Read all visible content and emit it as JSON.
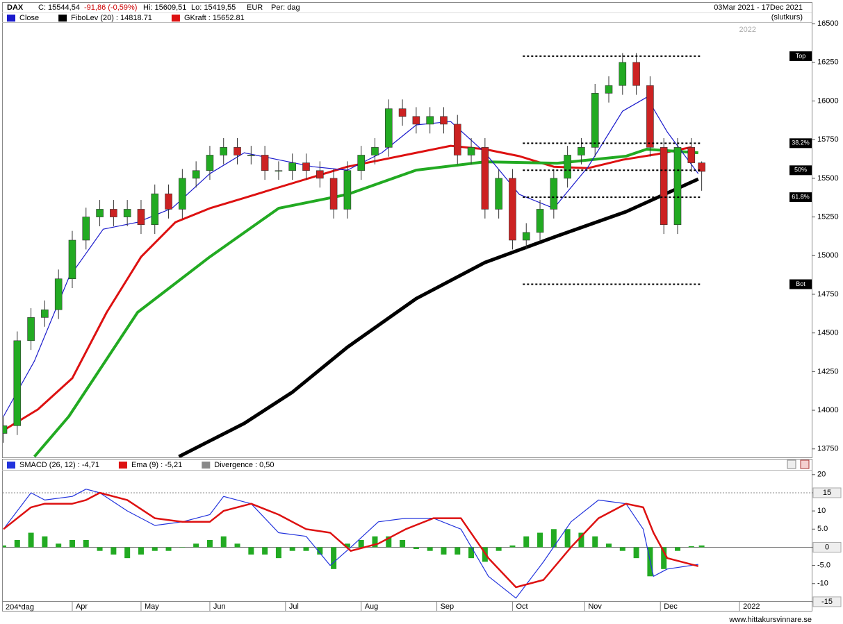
{
  "header": {
    "symbol": "DAX",
    "close": "C: 15544,54",
    "change": "-91,86 (-0,59%)",
    "high": "Hi: 15609,51",
    "low": "Lo: 15419,55",
    "currency": "EUR",
    "period": "Per: dag",
    "range": "03Mar 2021 - 17Dec 2021",
    "price_type": "(slutkurs)"
  },
  "footer": {
    "site": "www.hittakursvinnare.se"
  },
  "chart_data": [
    {
      "type": "candlestick",
      "annotation": "2022",
      "xlim": [
        0,
        235
      ],
      "ylim": [
        13695,
        16505
      ],
      "yticks": [
        13750,
        14000,
        14250,
        14500,
        14750,
        15000,
        15250,
        15500,
        15750,
        16000,
        16250,
        16500
      ],
      "up_color": "#22aa22",
      "down_color": "#cc2222",
      "x": [
        0,
        4,
        8,
        12,
        16,
        20,
        24,
        28,
        32,
        36,
        40,
        44,
        48,
        52,
        56,
        60,
        64,
        68,
        72,
        76,
        80,
        84,
        88,
        92,
        96,
        100,
        104,
        108,
        112,
        116,
        120,
        124,
        128,
        132,
        136,
        140,
        144,
        148,
        152,
        156,
        160,
        164,
        168,
        172,
        176,
        180,
        184,
        188,
        192,
        196,
        200,
        203
      ],
      "open": [
        13850,
        13900,
        14450,
        14600,
        14650,
        14850,
        15100,
        15250,
        15300,
        15250,
        15300,
        15200,
        15400,
        15300,
        15500,
        15550,
        15650,
        15700,
        15650,
        15650,
        15550,
        15550,
        15600,
        15550,
        15500,
        15300,
        15550,
        15650,
        15700,
        15950,
        15900,
        15850,
        15900,
        15850,
        15650,
        15700,
        15300,
        15500,
        15100,
        15150,
        15300,
        15500,
        15650,
        15700,
        16050,
        16100,
        16250,
        16100,
        15700,
        15200,
        15700,
        15600
      ],
      "high": [
        13960,
        14510,
        14660,
        14710,
        14910,
        15160,
        15310,
        15360,
        15360,
        15360,
        15360,
        15460,
        15460,
        15560,
        15610,
        15710,
        15760,
        15760,
        15710,
        15710,
        15610,
        15660,
        15660,
        15610,
        15560,
        15610,
        15710,
        15760,
        16010,
        16010,
        15960,
        15960,
        15960,
        15910,
        15760,
        15760,
        15560,
        15560,
        15210,
        15360,
        15560,
        15710,
        15760,
        16110,
        16160,
        16310,
        16310,
        16160,
        15760,
        15760,
        15760,
        15609.51
      ],
      "low": [
        13790,
        13840,
        14390,
        14540,
        14590,
        14790,
        15040,
        15190,
        15190,
        15190,
        15140,
        15140,
        15240,
        15240,
        15440,
        15490,
        15590,
        15590,
        15590,
        15490,
        15490,
        15490,
        15490,
        15440,
        15240,
        15240,
        15490,
        15590,
        15640,
        15840,
        15790,
        15790,
        15790,
        15590,
        15590,
        15240,
        15240,
        15040,
        15040,
        15090,
        15240,
        15440,
        15590,
        15640,
        15990,
        16040,
        16040,
        15640,
        15140,
        15140,
        15540,
        15419.55
      ],
      "close": [
        13900,
        14450,
        14600,
        14650,
        14850,
        15100,
        15250,
        15300,
        15250,
        15300,
        15200,
        15400,
        15300,
        15500,
        15550,
        15650,
        15700,
        15650,
        15650,
        15550,
        15550,
        15600,
        15550,
        15500,
        15300,
        15550,
        15650,
        15700,
        15950,
        15900,
        15850,
        15900,
        15850,
        15650,
        15700,
        15300,
        15500,
        15100,
        15150,
        15300,
        15500,
        15650,
        15700,
        16050,
        16100,
        16250,
        16100,
        15700,
        15200,
        15700,
        15600,
        15544.54
      ],
      "series": [
        {
          "name": "Close",
          "color": "#1a1acc",
          "width": 1.2,
          "x": [
            0,
            9,
            19,
            29,
            39,
            49,
            60,
            70,
            80,
            90,
            100,
            110,
            120,
            130,
            140,
            150,
            160,
            170,
            180,
            187,
            193,
            202
          ],
          "values": [
            13960,
            14318,
            14857,
            15171,
            15216,
            15306,
            15530,
            15665,
            15620,
            15575,
            15553,
            15665,
            15845,
            15867,
            15665,
            15396,
            15306,
            15575,
            15934,
            16024,
            15800,
            15530
          ]
        },
        {
          "name": "FiboLev (20) : 14818.71",
          "color": "#000000",
          "width": 5,
          "x": [
            51,
            60,
            70,
            84,
            100,
            120,
            140,
            161,
            181,
            202
          ],
          "values": [
            13700,
            13802,
            13915,
            14117,
            14408,
            14722,
            14956,
            15127,
            15284,
            15495
          ]
        },
        {
          "name": "GKraft : 15652.81",
          "color": "#dd1111",
          "width": 3,
          "x": [
            0,
            10,
            20,
            30,
            40,
            50,
            60,
            70,
            80,
            90,
            100,
            110,
            120,
            130,
            140,
            150,
            160,
            170,
            180,
            190,
            200
          ],
          "values": [
            13870,
            14005,
            14207,
            14633,
            14992,
            15216,
            15306,
            15373,
            15441,
            15508,
            15575,
            15620,
            15665,
            15710,
            15688,
            15643,
            15575,
            15566,
            15620,
            15656,
            15701
          ]
        },
        {
          "color": "#22aa22",
          "width": 4,
          "x": [
            9,
            19,
            39,
            60,
            80,
            100,
            120,
            140,
            161,
            181,
            187,
            202
          ],
          "values": [
            13700,
            13960,
            14633,
            14992,
            15306,
            15396,
            15553,
            15607,
            15598,
            15643,
            15688,
            15665
          ]
        }
      ],
      "fib_x": [
        151,
        203
      ],
      "fib_levels": [
        {
          "label": "Top",
          "value": 16290
        },
        {
          "label": "38.2%",
          "value": 15727
        },
        {
          "label": "50%",
          "value": 15552
        },
        {
          "label": "61.8%",
          "value": 15378
        },
        {
          "label": "Bot",
          "value": 14815
        }
      ]
    },
    {
      "type": "macd",
      "period_label": "204*dag",
      "xlim": [
        0,
        235
      ],
      "ylim": [
        -17.5,
        21.3
      ],
      "reference_line": 15,
      "yticks": [
        20,
        15,
        10,
        {
          "value": 5,
          "label": "5.0"
        },
        0,
        {
          "value": -5,
          "label": "-5.0"
        },
        -10,
        -15
      ],
      "xticks": [
        {
          "value": 20,
          "label": "Apr"
        },
        {
          "value": 40,
          "label": "May"
        },
        {
          "value": 60,
          "label": "Jun"
        },
        {
          "value": 82,
          "label": "Jul"
        },
        {
          "value": 104,
          "label": "Aug"
        },
        {
          "value": 126,
          "label": "Sep"
        },
        {
          "value": 148,
          "label": "Oct"
        },
        {
          "value": 169,
          "label": "Nov"
        },
        {
          "value": 191,
          "label": "Dec"
        },
        {
          "value": 214,
          "label": "2022"
        }
      ],
      "series": [
        {
          "name": "SMACD (26, 12) : -4,71",
          "color": "#2233dd",
          "width": 1.2,
          "x": [
            0,
            8,
            12,
            20,
            24,
            28,
            36,
            44,
            52,
            60,
            64,
            72,
            80,
            88,
            95,
            101,
            109,
            117,
            125,
            133,
            141,
            149,
            157,
            165,
            173,
            181,
            186,
            189,
            193,
            202
          ],
          "values": [
            5,
            15,
            13,
            14,
            16,
            15,
            10,
            6,
            7,
            9,
            14,
            12,
            4,
            3,
            -5,
            0,
            7,
            8,
            8,
            5,
            -8,
            -14,
            -4,
            7,
            13,
            12,
            5,
            -8,
            -6,
            -4.71
          ]
        },
        {
          "name": "Ema (9) : -5,21",
          "color": "#dd1111",
          "width": 2.5,
          "x": [
            0,
            8,
            12,
            20,
            24,
            28,
            36,
            44,
            52,
            60,
            64,
            72,
            80,
            88,
            95,
            101,
            109,
            117,
            125,
            133,
            141,
            149,
            157,
            165,
            173,
            181,
            186,
            189,
            193,
            202
          ],
          "values": [
            5,
            11,
            12,
            12,
            13,
            15,
            13,
            8,
            7,
            7,
            10,
            12,
            9,
            5,
            4,
            -1,
            1,
            5,
            8,
            8,
            -3,
            -11,
            -9,
            0,
            8,
            12,
            11,
            4,
            -3,
            -5.21
          ]
        }
      ],
      "histogram": {
        "name": "Divergence : 0,50",
        "color": "#22aa22",
        "legend_color": "#888888",
        "x": [
          0,
          4,
          8,
          12,
          16,
          20,
          24,
          28,
          32,
          36,
          40,
          44,
          48,
          52,
          56,
          60,
          64,
          68,
          72,
          76,
          80,
          84,
          88,
          92,
          96,
          100,
          104,
          108,
          112,
          116,
          120,
          124,
          128,
          132,
          136,
          140,
          144,
          148,
          152,
          156,
          160,
          164,
          168,
          172,
          176,
          180,
          184,
          188,
          192,
          196,
          200,
          203
        ],
        "values": [
          0.5,
          2,
          4,
          3,
          1,
          2,
          2,
          -1,
          -2,
          -3,
          -2,
          -1,
          -1,
          0,
          1,
          2,
          3,
          1,
          -2,
          -2,
          -3,
          -1,
          -1,
          -2,
          -6,
          1,
          2,
          3,
          3,
          2,
          -0.5,
          -1,
          -2,
          -2,
          -3,
          -4,
          -1,
          0.5,
          3,
          4,
          5,
          5,
          4,
          3,
          1,
          -1,
          -3,
          -8,
          -6,
          -1,
          0.3,
          0.5
        ]
      }
    }
  ]
}
